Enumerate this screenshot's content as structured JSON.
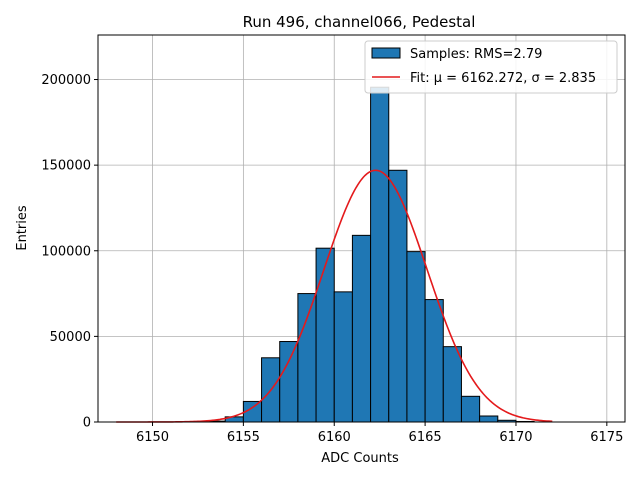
{
  "chart_data": {
    "type": "bar",
    "title": "Run 496, channel066, Pedestal",
    "xlabel": "ADC Counts",
    "ylabel": "Entries",
    "xlim": [
      6147,
      6176
    ],
    "ylim": [
      0,
      226000
    ],
    "xticks": [
      6150,
      6155,
      6160,
      6165,
      6170,
      6175
    ],
    "yticks": [
      0,
      50000,
      100000,
      150000,
      200000
    ],
    "grid": true,
    "legend_position": "top-right",
    "histogram": {
      "name": "Samples: RMS=2.79",
      "color": "#1f77b4",
      "bin_width": 1,
      "bin_lefts": [
        6153,
        6154,
        6155,
        6156,
        6157,
        6158,
        6159,
        6160,
        6161,
        6162,
        6163,
        6164,
        6165,
        6166,
        6167,
        6168,
        6169,
        6170
      ],
      "values": [
        500,
        3000,
        12000,
        37500,
        47000,
        75000,
        101500,
        76000,
        109000,
        195500,
        147000,
        99500,
        71500,
        44000,
        15000,
        3500,
        1000,
        300
      ]
    },
    "fit": {
      "name": "Fit: μ = 6162.272, σ = 2.835",
      "color": "#e41a1c",
      "mu": 6162.272,
      "sigma": 2.835,
      "amplitude": 147000,
      "x_range": [
        6148,
        6172
      ]
    }
  }
}
